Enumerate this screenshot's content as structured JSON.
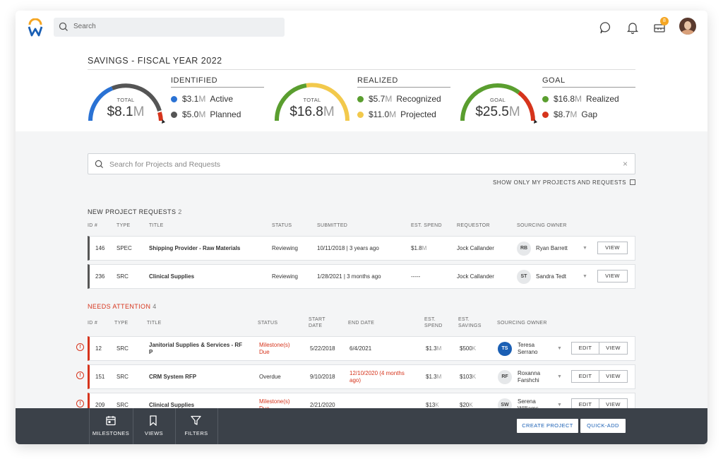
{
  "topbar": {
    "search_placeholder": "Search",
    "notification_count": "8",
    "colors": {
      "brand_blue": "#1a5fb4",
      "brand_orange": "#f5a623"
    }
  },
  "savings": {
    "title": "SAVINGS - FISCAL YEAR 2022",
    "gauges": [
      {
        "label": "TOTAL",
        "value": "$8.1",
        "unit": "M"
      },
      {
        "label": "TOTAL",
        "value": "$16.8",
        "unit": "M"
      },
      {
        "label": "GOAL",
        "value": "$25.5",
        "unit": "M"
      }
    ],
    "identified": {
      "heading": "IDENTIFIED",
      "items": [
        {
          "amount": "$3.1",
          "unit": "M",
          "name": "Active",
          "color": "#2a72d4"
        },
        {
          "amount": "$5.0",
          "unit": "M",
          "name": "Planned",
          "color": "#555555"
        }
      ]
    },
    "realized": {
      "heading": "REALIZED",
      "items": [
        {
          "amount": "$5.7",
          "unit": "M",
          "name": "Recognized",
          "color": "#5a9e2f"
        },
        {
          "amount": "$11.0",
          "unit": "M",
          "name": "Projected",
          "color": "#f2c94c"
        }
      ]
    },
    "goal": {
      "heading": "GOAL",
      "items": [
        {
          "amount": "$16.8",
          "unit": "M",
          "name": "Realized",
          "color": "#5a9e2f"
        },
        {
          "amount": "$8.7",
          "unit": "M",
          "name": "Gap",
          "color": "#d6341c"
        }
      ]
    }
  },
  "content": {
    "search_placeholder": "Search for Projects and Requests",
    "clear_glyph": "×",
    "show_only_label": "SHOW ONLY MY PROJECTS AND REQUESTS",
    "new_requests": {
      "title": "NEW PROJECT REQUESTS",
      "count": "2",
      "headers": [
        "ID #",
        "TYPE",
        "TITLE",
        "STATUS",
        "SUBMITTED",
        "EST. SPEND",
        "REQUESTOR",
        "SOURCING OWNER"
      ],
      "rows": [
        {
          "id": "146",
          "type": "SPEC",
          "title": "Shipping Provider - Raw Materials",
          "status": "Reviewing",
          "submitted": "10/11/2018 | 3 years ago",
          "spend": "$1.8",
          "spend_unit": "M",
          "requestor": "Jock Callander",
          "owner_initials": "RB",
          "owner": "Ryan Barrett",
          "view": "VIEW"
        },
        {
          "id": "236",
          "type": "SRC",
          "title": "Clinical Supplies",
          "status": "Reviewing",
          "submitted": "1/28/2021 | 3 months ago",
          "spend": "-----",
          "spend_unit": "",
          "requestor": "Jock Callander",
          "owner_initials": "ST",
          "owner": "Sandra Tedt",
          "view": "VIEW"
        }
      ]
    },
    "needs_attention": {
      "title": "NEEDS ATTENTION",
      "count": "4",
      "headers": {
        "id": "ID #",
        "type": "TYPE",
        "title": "TITLE",
        "status": "STATUS",
        "start_date_1": "START",
        "start_date_2": "DATE",
        "end_date": "END DATE",
        "spend_1": "EST.",
        "spend_2": "SPEND",
        "savings_1": "EST.",
        "savings_2": "SAVINGS",
        "owner": "SOURCING OWNER"
      },
      "rows": [
        {
          "id": "12",
          "type": "SRC",
          "title_1": "Janitorial Supplies & Services - RF",
          "title_2": "P",
          "status_1": "Milestone(s)",
          "status_2": "Due",
          "status_red": true,
          "start": "5/22/2018",
          "end_1": "6/4/2021",
          "end_2": "",
          "spend": "$1.3",
          "spend_unit": "M",
          "savings": "$500",
          "savings_unit": "K",
          "owner_initials": "TS",
          "owner_1": "Teresa",
          "owner_2": "Serrano",
          "edit": "EDIT",
          "view": "VIEW"
        },
        {
          "id": "151",
          "type": "SRC",
          "title_1": "CRM System RFP",
          "title_2": "",
          "status_1": "Overdue",
          "status_2": "",
          "status_red": false,
          "start": "9/10/2018",
          "end_1": "12/10/2020 (4 months",
          "end_2": "ago)",
          "spend": "$1.3",
          "spend_unit": "M",
          "savings": "$103",
          "savings_unit": "K",
          "owner_initials": "RF",
          "owner_1": "Roxanna",
          "owner_2": "Farshchi",
          "edit": "EDIT",
          "view": "VIEW"
        },
        {
          "id": "209",
          "type": "SRC",
          "title_1": "Clinical Supplies",
          "title_2": "",
          "status_1": "Milestone(s)",
          "status_2": "Due",
          "status_red": true,
          "start": "2/21/2020",
          "end_1": "",
          "end_2": "",
          "spend": "$13",
          "spend_unit": "K",
          "savings": "$20",
          "savings_unit": "K",
          "owner_initials": "SW",
          "owner_1": "Serena",
          "owner_2": "Williams",
          "edit": "EDIT",
          "view": "VIEW"
        }
      ]
    }
  },
  "bottombar": {
    "milestones": "MILESTONES",
    "views": "VIEWS",
    "filters": "FILTERS",
    "create_project": "CREATE PROJECT",
    "quick_add": "QUICK-ADD"
  }
}
